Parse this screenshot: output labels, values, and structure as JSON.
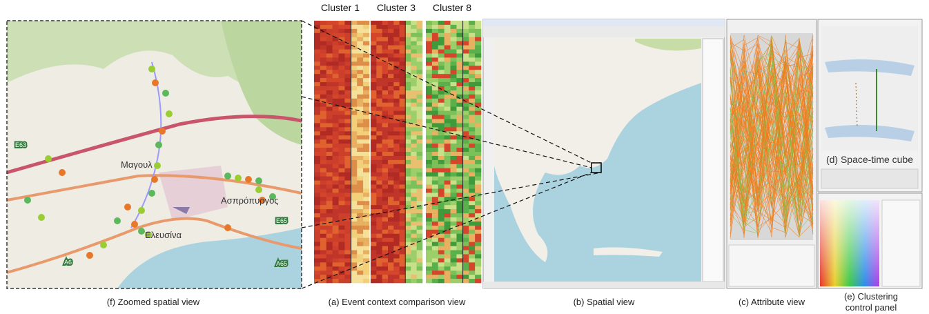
{
  "cluster_labels": [
    "Cluster 1",
    "Cluster 3",
    "Cluster 8"
  ],
  "captions": {
    "zoom": "(f) Zoomed spatial view",
    "event": "(a) Event context comparison view",
    "spatial": "(b) Spatial view",
    "attribute": "(c) Attribute view",
    "clustering": [
      "(e) Clustering",
      "control panel"
    ]
  },
  "zoom_map": {
    "labels": [
      "Μαγουλ",
      "Ασπρόπυργος",
      "Ελευσίνα",
      "E63",
      "E65",
      "A6",
      "A65"
    ]
  },
  "space_time_cube": {
    "label": "(d) Space-time cube"
  }
}
